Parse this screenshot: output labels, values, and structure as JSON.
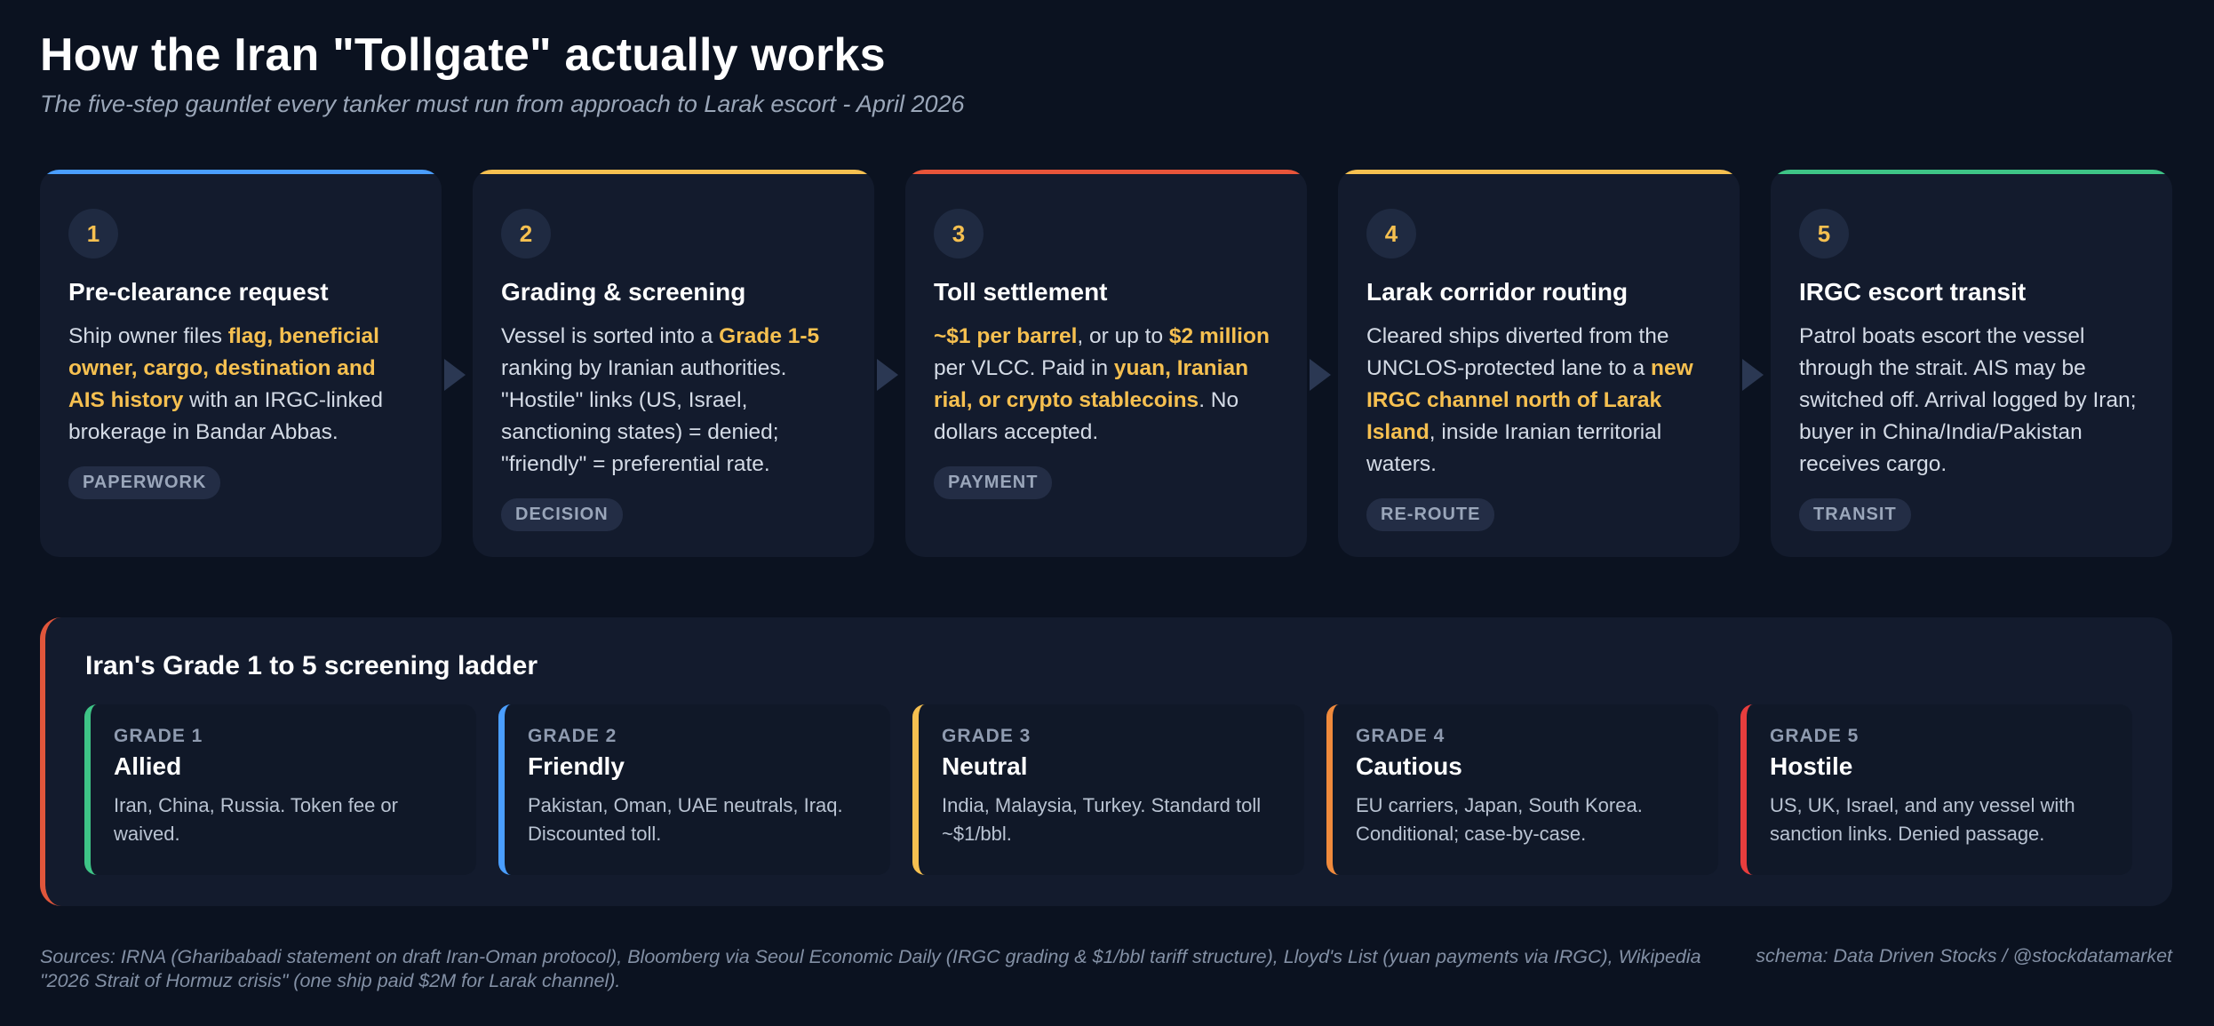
{
  "header": {
    "title": "How the Iran \"Tollgate\" actually works",
    "subtitle": "The five-step gauntlet every tanker must run from approach to Larak escort - April 2026"
  },
  "steps": [
    {
      "number": "1",
      "title": "Pre-clearance request",
      "accent": "#4a9eff",
      "body": [
        {
          "t": "Ship owner files ",
          "h": false
        },
        {
          "t": "flag, beneficial owner, cargo, destination and AIS history",
          "h": true
        },
        {
          "t": " with an IRGC-linked brokerage in Bandar Abbas.",
          "h": false
        }
      ],
      "tag": "PAPERWORK"
    },
    {
      "number": "2",
      "title": "Grading & screening",
      "accent": "#f6c050",
      "body": [
        {
          "t": "Vessel is sorted into a ",
          "h": false
        },
        {
          "t": "Grade 1-5",
          "h": true
        },
        {
          "t": " ranking by Iranian authorities. \"Hostile\" links (US, Israel, sanctioning states) = denied; \"friendly\" = preferential rate.",
          "h": false
        }
      ],
      "tag": "DECISION"
    },
    {
      "number": "3",
      "title": "Toll settlement",
      "accent": "#e8553a",
      "body": [
        {
          "t": "~$1 per barrel",
          "h": true
        },
        {
          "t": ", or up to ",
          "h": false
        },
        {
          "t": "$2 million",
          "h": true
        },
        {
          "t": " per VLCC. Paid in ",
          "h": false
        },
        {
          "t": "yuan, Iranian rial, or crypto stablecoins",
          "h": true
        },
        {
          "t": ". No dollars accepted.",
          "h": false
        }
      ],
      "tag": "PAYMENT"
    },
    {
      "number": "4",
      "title": "Larak corridor routing",
      "accent": "#f6c050",
      "body": [
        {
          "t": "Cleared ships diverted from the UNCLOS-protected lane to a ",
          "h": false
        },
        {
          "t": "new IRGC channel north of Larak Island",
          "h": true
        },
        {
          "t": ", inside Iranian territorial waters.",
          "h": false
        }
      ],
      "tag": "RE-ROUTE"
    },
    {
      "number": "5",
      "title": "IRGC escort transit",
      "accent": "#3ec486",
      "body": [
        {
          "t": "Patrol boats escort the vessel through the strait. AIS may be switched off. Arrival logged by Iran; buyer in China/India/Pakistan receives cargo.",
          "h": false
        }
      ],
      "tag": "TRANSIT"
    }
  ],
  "ladder": {
    "title": "Iran's Grade 1 to 5 screening ladder",
    "accent": "#e0563b",
    "grades": [
      {
        "label": "GRADE 1",
        "name": "Allied",
        "desc": "Iran, China, Russia. Token fee or waived.",
        "accent": "#3ec486"
      },
      {
        "label": "GRADE 2",
        "name": "Friendly",
        "desc": "Pakistan, Oman, UAE neutrals, Iraq. Discounted toll.",
        "accent": "#4a9eff"
      },
      {
        "label": "GRADE 3",
        "name": "Neutral",
        "desc": "India, Malaysia, Turkey. Standard toll ~$1/bbl.",
        "accent": "#f6c050"
      },
      {
        "label": "GRADE 4",
        "name": "Cautious",
        "desc": "EU carriers, Japan, South Korea. Conditional; case-by-case.",
        "accent": "#f08a3c"
      },
      {
        "label": "GRADE 5",
        "name": "Hostile",
        "desc": "US, UK, Israel, and any vessel with sanction links. Denied passage.",
        "accent": "#e83d3d"
      }
    ]
  },
  "footer": {
    "sources": "Sources: IRNA (Gharibabadi statement on draft Iran-Oman protocol), Bloomberg via Seoul Economic Daily (IRGC grading & $1/bbl tariff structure), Lloyd's List (yuan payments via IRGC), Wikipedia \"2026 Strait of Hormuz crisis\" (one ship paid $2M for Larak channel).",
    "credit": "schema: Data Driven Stocks / @stockdatamarket"
  }
}
